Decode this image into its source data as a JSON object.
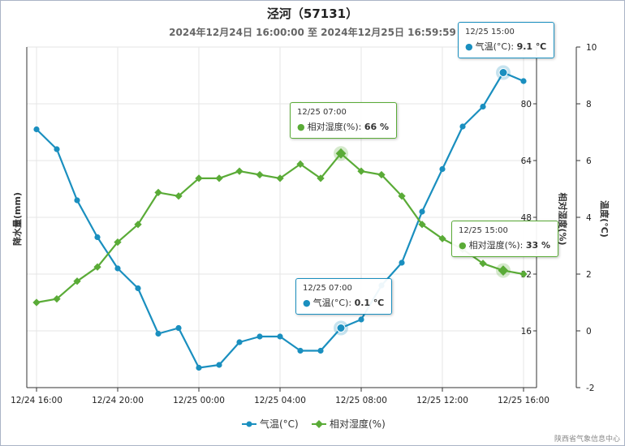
{
  "title": "泾河（57131）",
  "subtitle": "2024年12月24日 16:00:00 至 2024年12月25日 16:59:59",
  "credit": "陕西省气象信息中心",
  "colors": {
    "temp": "#1a8fbf",
    "humid": "#5aab37"
  },
  "chart_data": {
    "type": "line",
    "x": [
      "12/24 16:00",
      "12/24 17:00",
      "12/24 18:00",
      "12/24 19:00",
      "12/24 20:00",
      "12/24 21:00",
      "12/24 22:00",
      "12/24 23:00",
      "12/25 00:00",
      "12/25 01:00",
      "12/25 02:00",
      "12/25 03:00",
      "12/25 04:00",
      "12/25 05:00",
      "12/25 06:00",
      "12/25 07:00",
      "12/25 08:00",
      "12/25 09:00",
      "12/25 10:00",
      "12/25 11:00",
      "12/25 12:00",
      "12/25 13:00",
      "12/25 14:00",
      "12/25 15:00",
      "12/25 16:00"
    ],
    "x_ticks": [
      "12/24 16:00",
      "12/24 20:00",
      "12/25 00:00",
      "12/25 04:00",
      "12/25 08:00",
      "12/25 12:00",
      "12/25 16:00"
    ],
    "left_axis": {
      "label": "降水量(mm)"
    },
    "humid_axis": {
      "label": "相对湿度(%)",
      "ticks": [
        "16",
        "32",
        "48",
        "64",
        "80",
        "96"
      ],
      "range": [
        0,
        96
      ]
    },
    "temp_axis": {
      "label": "温度(°C)",
      "ticks": [
        "-2",
        "0",
        "2",
        "4",
        "6",
        "8",
        "10"
      ],
      "range": [
        -2,
        10
      ]
    },
    "grid": true,
    "legend_position": "bottom",
    "series": [
      {
        "name": "气温(°C)",
        "axis": "temp",
        "values": [
          7.1,
          6.4,
          4.6,
          3.3,
          2.2,
          1.5,
          -0.1,
          0.1,
          -1.3,
          -1.2,
          -0.4,
          -0.2,
          -0.2,
          -0.7,
          -0.7,
          0.1,
          0.4,
          1.6,
          2.4,
          4.2,
          5.7,
          7.2,
          7.9,
          9.1,
          8.8
        ]
      },
      {
        "name": "相对湿度(%)",
        "axis": "humid",
        "values": [
          24,
          25,
          30,
          34,
          41,
          46,
          55,
          54,
          59,
          59,
          61,
          60,
          59,
          63,
          59,
          66,
          61,
          60,
          54,
          46,
          42,
          39,
          35,
          33,
          32
        ]
      }
    ],
    "tooltips": [
      {
        "time": "12/25 07:00",
        "label": "相对湿度(%): ",
        "value": "66 %"
      },
      {
        "time": "12/25 07:00",
        "label": "气温(°C): ",
        "value": "0.1 ℃"
      },
      {
        "time": "12/25 15:00",
        "label": "气温(°C): ",
        "value": "9.1 ℃"
      },
      {
        "time": "12/25 15:00",
        "label": "相对湿度(%): ",
        "value": "33 %"
      }
    ]
  }
}
